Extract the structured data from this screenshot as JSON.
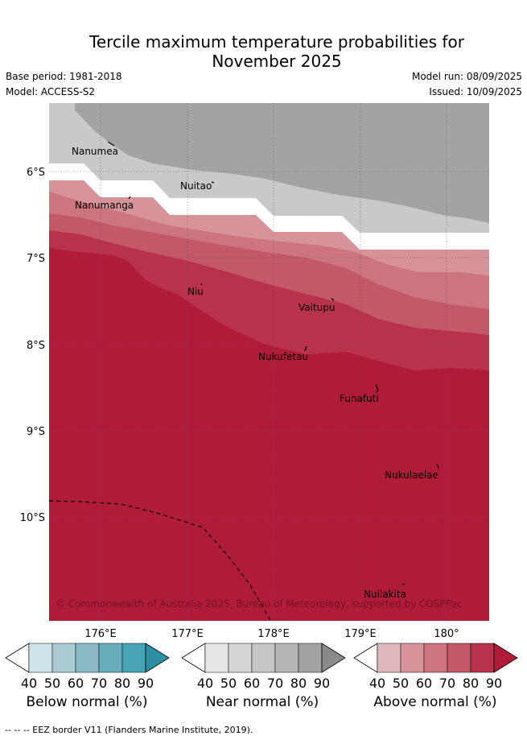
{
  "title_line1": "Tercile maximum temperature probabilities for",
  "title_line2": "November 2025",
  "base_period": "Base period: 1981-2018",
  "model": "Model: ACCESS-S2",
  "model_run": "Model run: 08/09/2025",
  "issued": "Issued: 10/09/2025",
  "copyright": "© Commonwealth of Australia 2025, Bureau of Meteorology, supported by COSPPac",
  "footer": "--  --  -- EEZ border V11 (Flanders Marine Institute, 2019).",
  "axes": {
    "lon_labels": [
      "176°E",
      "177°E",
      "178°E",
      "179°E",
      "180°"
    ],
    "lat_labels": [
      "6°S",
      "7°S",
      "8°S",
      "9°S",
      "10°S"
    ]
  },
  "places": [
    {
      "name": "Nanumea"
    },
    {
      "name": "Nuitao"
    },
    {
      "name": "Nanumanga"
    },
    {
      "name": "Niu"
    },
    {
      "name": "Vaitupu"
    },
    {
      "name": "Nukufetau"
    },
    {
      "name": "Funafuti"
    },
    {
      "name": "Nukulaelae"
    },
    {
      "name": "Nuilakita"
    }
  ],
  "colorbars": [
    {
      "label": "Below normal (%)",
      "ticks": [
        "40",
        "50",
        "60",
        "70",
        "80",
        "90"
      ],
      "colors": [
        "#cfe4ea",
        "#abcbd2",
        "#8ab8c5",
        "#69adbd",
        "#48a3b4",
        "#2e8fa3"
      ]
    },
    {
      "label": "Near normal (%)",
      "ticks": [
        "40",
        "50",
        "60",
        "70",
        "80",
        "90"
      ],
      "colors": [
        "#e5e5e5",
        "#d6d6d6",
        "#c6c6c6",
        "#b6b6b6",
        "#a3a3a3",
        "#8a8a8a"
      ]
    },
    {
      "label": "Above normal (%)",
      "ticks": [
        "40",
        "50",
        "60",
        "70",
        "80",
        "90"
      ],
      "colors": [
        "#e0b8be",
        "#d7939a",
        "#cd757e",
        "#c35866",
        "#b8324b",
        "#b01c38"
      ]
    }
  ]
}
